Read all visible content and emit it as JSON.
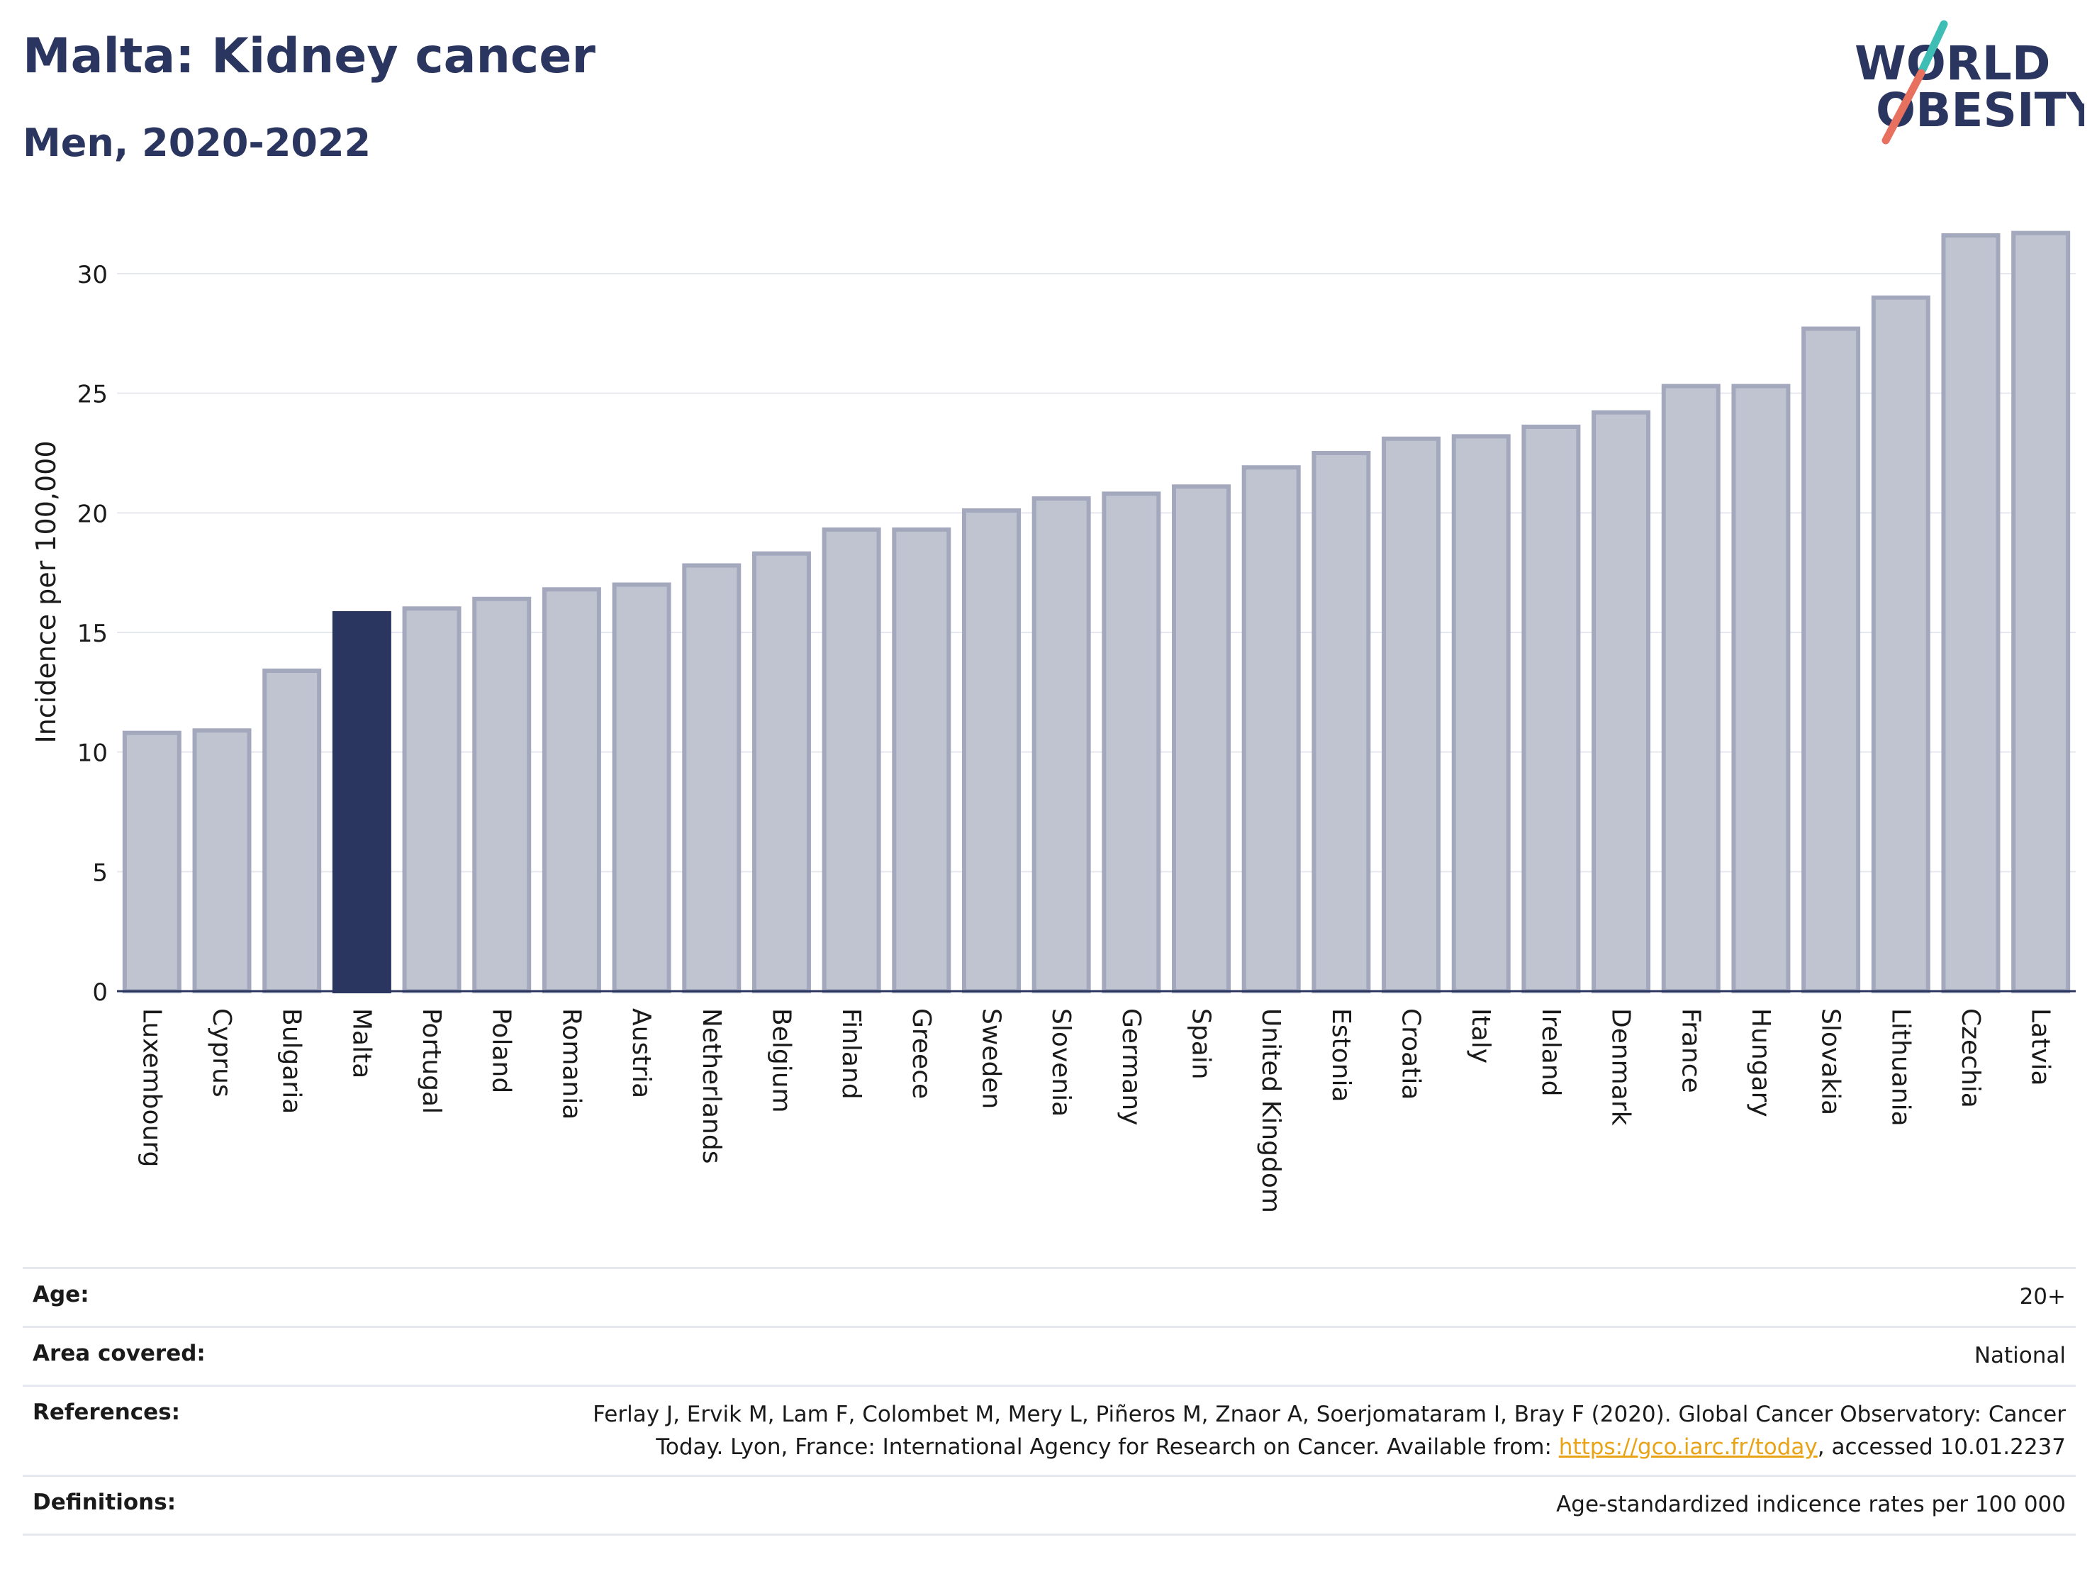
{
  "header": {
    "title": "Malta: Kidney cancer",
    "subtitle": "Men, 2020-2022",
    "logo_line1": "WORLD",
    "logo_line2": "OBESITY"
  },
  "colors": {
    "highlight": "#2b3660",
    "bar_fill": "#c0c3d0",
    "bar_stroke": "#a3a8bd",
    "grid": "#e6e8ef",
    "text": "#2b3660",
    "logo_teal": "#3ebdb5",
    "logo_coral": "#e8705f",
    "link": "#e8a317"
  },
  "chart_data": {
    "type": "bar",
    "ylabel": "Incidence per 100,000",
    "ylim": [
      0,
      32
    ],
    "yticks": [
      0,
      5,
      10,
      15,
      20,
      25,
      30
    ],
    "grid": true,
    "highlight": "Malta",
    "categories": [
      "Luxembourg",
      "Cyprus",
      "Bulgaria",
      "Malta",
      "Portugal",
      "Poland",
      "Romania",
      "Austria",
      "Netherlands",
      "Belgium",
      "Finland",
      "Greece",
      "Sweden",
      "Slovenia",
      "Germany",
      "Spain",
      "United Kingdom",
      "Estonia",
      "Croatia",
      "Italy",
      "Ireland",
      "Denmark",
      "France",
      "Hungary",
      "Slovakia",
      "Lithuania",
      "Czechia",
      "Latvia"
    ],
    "values": [
      10.8,
      10.9,
      13.4,
      15.8,
      16.0,
      16.4,
      16.8,
      17.0,
      17.8,
      18.3,
      19.3,
      19.3,
      20.1,
      20.6,
      20.8,
      21.1,
      21.9,
      22.5,
      23.1,
      23.2,
      23.6,
      24.2,
      25.3,
      25.3,
      27.7,
      29.0,
      31.6,
      31.7
    ]
  },
  "meta": {
    "age_label": "Age:",
    "age_value": "20+",
    "area_label": "Area covered:",
    "area_value": "National",
    "references_label": "References:",
    "references_line1": "Ferlay J, Ervik M, Lam F, Colombet M, Mery L, Piñeros M, Znaor A, Soerjomataram I, Bray F (2020). Global Cancer Observatory: Cancer",
    "references_line2_pre": "Today. Lyon, France: International Agency for Research on Cancer. Available from: ",
    "references_link": "https://gco.iarc.fr/today",
    "references_line2_post": ", accessed 10.01.2237",
    "definitions_label": "Definitions:",
    "definitions_value": "Age-standardized indicence rates per 100 000"
  }
}
